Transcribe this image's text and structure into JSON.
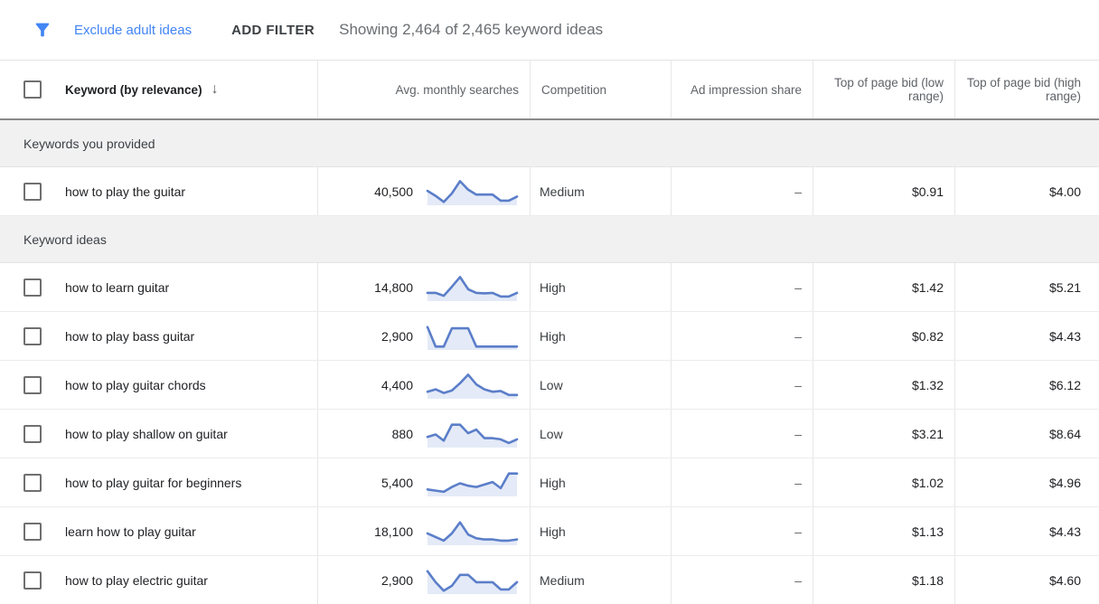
{
  "filter_bar": {
    "exclude_label": "Exclude adult ideas",
    "add_filter_label": "ADD FILTER",
    "showing_text": "Showing 2,464 of 2,465 keyword ideas"
  },
  "header": {
    "keyword": "Keyword (by relevance)",
    "sort_icon": "arrow-down",
    "searches": "Avg. monthly searches",
    "competition": "Competition",
    "ad_impression": "Ad impression share",
    "bid_low": "Top of page bid (low range)",
    "bid_high": "Top of page bid (high range)"
  },
  "sections": [
    {
      "label": "Keywords you provided",
      "rows": [
        {
          "keyword": "how to play the guitar",
          "searches": "40,500",
          "trend": [
            0.55,
            0.35,
            0.1,
            0.45,
            0.95,
            0.6,
            0.4,
            0.4,
            0.4,
            0.15,
            0.15,
            0.32
          ],
          "competition": "Medium",
          "ad_impression": "–",
          "bid_low": "$0.91",
          "bid_high": "$4.00"
        }
      ]
    },
    {
      "label": "Keyword ideas",
      "rows": [
        {
          "keyword": "how to learn guitar",
          "searches": "14,800",
          "trend": [
            0.3,
            0.3,
            0.18,
            0.55,
            0.95,
            0.45,
            0.3,
            0.28,
            0.3,
            0.15,
            0.15,
            0.3
          ],
          "competition": "High",
          "ad_impression": "–",
          "bid_low": "$1.42",
          "bid_high": "$5.21"
        },
        {
          "keyword": "how to play bass guitar",
          "searches": "2,900",
          "trend": [
            0.9,
            0.1,
            0.1,
            0.85,
            0.85,
            0.85,
            0.1,
            0.1,
            0.1,
            0.1,
            0.1,
            0.1
          ],
          "competition": "High",
          "ad_impression": "–",
          "bid_low": "$0.82",
          "bid_high": "$4.43"
        },
        {
          "keyword": "how to play guitar chords",
          "searches": "4,400",
          "trend": [
            0.25,
            0.35,
            0.2,
            0.3,
            0.6,
            0.95,
            0.55,
            0.35,
            0.25,
            0.28,
            0.12,
            0.12
          ],
          "competition": "Low",
          "ad_impression": "–",
          "bid_low": "$1.32",
          "bid_high": "$6.12"
        },
        {
          "keyword": "how to play shallow on guitar",
          "searches": "880",
          "trend": [
            0.4,
            0.5,
            0.25,
            0.9,
            0.9,
            0.55,
            0.7,
            0.35,
            0.35,
            0.3,
            0.15,
            0.3
          ],
          "competition": "Low",
          "ad_impression": "–",
          "bid_low": "$3.21",
          "bid_high": "$8.64"
        },
        {
          "keyword": "how to play guitar for beginners",
          "searches": "5,400",
          "trend": [
            0.25,
            0.2,
            0.15,
            0.35,
            0.5,
            0.4,
            0.35,
            0.45,
            0.55,
            0.3,
            0.9,
            0.9
          ],
          "competition": "High",
          "ad_impression": "–",
          "bid_low": "$1.02",
          "bid_high": "$4.96"
        },
        {
          "keyword": "learn how to play guitar",
          "searches": "18,100",
          "trend": [
            0.45,
            0.3,
            0.15,
            0.45,
            0.9,
            0.4,
            0.25,
            0.2,
            0.2,
            0.15,
            0.15,
            0.2
          ],
          "competition": "High",
          "ad_impression": "–",
          "bid_low": "$1.13",
          "bid_high": "$4.43"
        },
        {
          "keyword": "how to play electric guitar",
          "searches": "2,900",
          "trend": [
            0.9,
            0.45,
            0.1,
            0.3,
            0.75,
            0.75,
            0.45,
            0.45,
            0.45,
            0.15,
            0.15,
            0.45
          ],
          "competition": "Medium",
          "ad_impression": "–",
          "bid_low": "$1.18",
          "bid_high": "$4.60"
        }
      ]
    }
  ],
  "colors": {
    "accent_blue": "#4285f4",
    "spark_line": "#5b7ec9",
    "spark_fill": "#e4eaf7",
    "band_bg": "#f1f1f2",
    "header_border": "#8a8a8a",
    "row_border": "#ececec",
    "text_dark": "#202124",
    "text_gray": "#5f6368"
  }
}
